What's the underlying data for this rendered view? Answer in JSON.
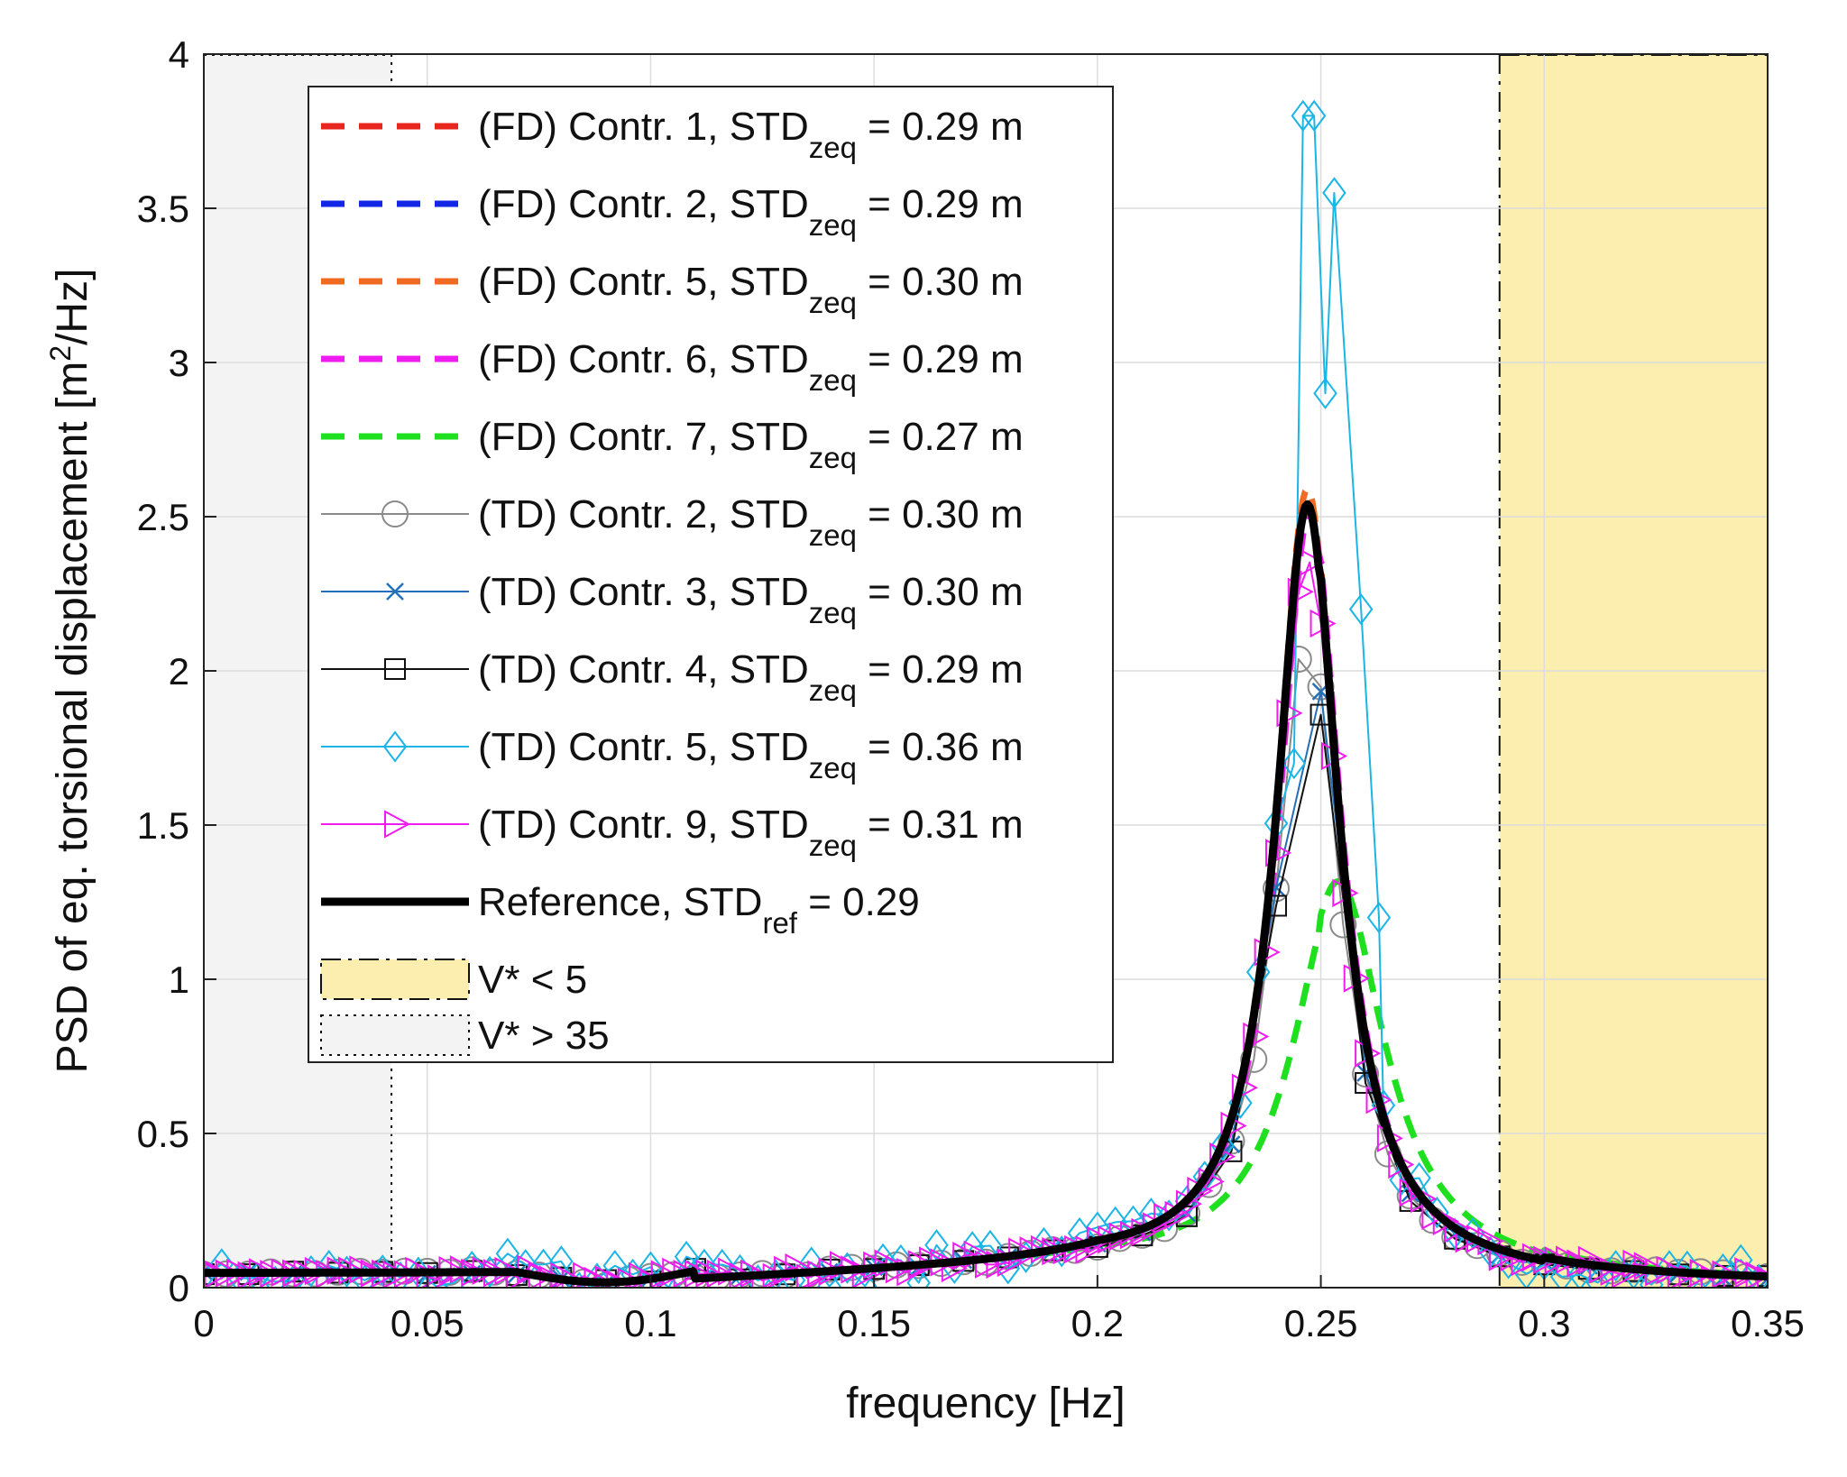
{
  "chart_data": {
    "type": "line",
    "title": "",
    "xlabel": "frequency [Hz]",
    "ylabel": "PSD of eq. torsional displacement [m²/Hz]",
    "ylabel_parts": {
      "pre": "PSD of eq. torsional displacement [m",
      "sup": "2",
      "post": "/Hz]"
    },
    "xlim": [
      0,
      0.35
    ],
    "ylim": [
      0,
      4
    ],
    "grid": true,
    "legend_position": "top-left",
    "x_ticks": [
      0,
      0.05,
      0.1,
      0.15,
      0.2,
      0.25,
      0.3,
      0.35
    ],
    "x_tick_labels": [
      "0",
      "0.05",
      "0.1",
      "0.15",
      "0.2",
      "0.25",
      "0.3",
      "0.35"
    ],
    "y_ticks": [
      0,
      0.5,
      1,
      1.5,
      2,
      2.5,
      3,
      3.5,
      4
    ],
    "y_tick_labels": [
      "0",
      "0.5",
      "1",
      "1.5",
      "2",
      "2.5",
      "3",
      "3.5",
      "4"
    ],
    "regions": [
      {
        "label": "V* < 5",
        "label_pre": "V* < 5",
        "x_start": 0.29,
        "x_end": 0.35,
        "fill": "#fbeeaf",
        "border": "dashdot"
      },
      {
        "label": "V* > 35",
        "label_pre": "V* > 35",
        "x_start": 0,
        "x_end": 0.042,
        "fill": "#f3f3f3",
        "border": "dotted"
      }
    ],
    "series": [
      {
        "name": "(FD) Contr. 1, STD_zeq = 0.29 m",
        "label_pre": "(FD) Contr. 1, STD",
        "label_sub": "zeq",
        "label_post": " = 0.29 m",
        "color": "#e8251e",
        "style": "dashed",
        "marker": "none",
        "scale": 1.0,
        "shift": 0.0,
        "noise": 0.0
      },
      {
        "name": "(FD) Contr. 2, STD_zeq = 0.29 m",
        "label_pre": "(FD) Contr. 2, STD",
        "label_sub": "zeq",
        "label_post": " = 0.29 m",
        "color": "#1226e6",
        "style": "dashed",
        "marker": "none",
        "scale": 1.0,
        "shift": 0.0,
        "noise": 0.0
      },
      {
        "name": "(FD) Contr. 5, STD_zeq = 0.30 m",
        "label_pre": "(FD) Contr. 5, STD",
        "label_sub": "zeq",
        "label_post": " = 0.30 m",
        "color": "#f06a22",
        "style": "dashed",
        "marker": "none",
        "scale": 1.02,
        "shift": 0.0,
        "noise": 0.0
      },
      {
        "name": "(FD) Contr. 6, STD_zeq = 0.29 m",
        "label_pre": "(FD) Contr. 6, STD",
        "label_sub": "zeq",
        "label_post": " = 0.29 m",
        "color": "#ee1cee",
        "style": "dashed",
        "marker": "none",
        "scale": 0.99,
        "shift": 0.0005,
        "noise": 0.0
      },
      {
        "name": "(FD) Contr. 7, STD_zeq = 0.27 m",
        "label_pre": "(FD) Contr. 7, STD",
        "label_sub": "zeq",
        "label_post": " = 0.27 m",
        "color": "#1fe01f",
        "style": "dashed",
        "marker": "none",
        "peak_override": {
          "f0": 0.254,
          "amp": 1.25,
          "gamma": 0.0125
        }
      },
      {
        "name": "(TD) Contr. 2, STD_zeq = 0.30 m",
        "label_pre": "(TD) Contr. 2, STD",
        "label_sub": "zeq",
        "label_post": " = 0.30 m",
        "color": "#8a8a8a",
        "style": "solid",
        "marker": "circle",
        "step": 0.005,
        "scale": 0.84,
        "shift": 0.0,
        "noise": 0.01
      },
      {
        "name": "(TD) Contr. 3, STD_zeq = 0.30 m",
        "label_pre": "(TD) Contr. 3, STD",
        "label_sub": "zeq",
        "label_post": " = 0.30 m",
        "color": "#2470b8",
        "style": "solid",
        "marker": "x",
        "step": 0.01,
        "scale": 0.84,
        "shift": 0.0,
        "noise": 0.01
      },
      {
        "name": "(TD) Contr. 4, STD_zeq = 0.29 m",
        "label_pre": "(TD) Contr. 4, STD",
        "label_sub": "zeq",
        "label_post": " = 0.29 m",
        "color": "#111111",
        "style": "solid",
        "marker": "square",
        "step": 0.01,
        "scale": 0.8,
        "shift": 0.0,
        "noise": 0.01
      },
      {
        "name": "(TD) Contr. 5, STD_zeq = 0.36 m",
        "label_pre": "(TD) Contr. 5, STD",
        "label_sub": "zeq",
        "label_post": "  = 0.36 m",
        "color": "#1bb5e6",
        "style": "solid",
        "marker": "diamond",
        "step": 0.004,
        "peak_points": [
          [
            0.244,
            1.7
          ],
          [
            0.246,
            3.8
          ],
          [
            0.2485,
            3.8
          ],
          [
            0.251,
            2.9
          ],
          [
            0.253,
            3.55
          ],
          [
            0.259,
            2.2
          ],
          [
            0.263,
            1.2
          ]
        ],
        "scale": 1.0,
        "shift": 0.0,
        "noise": 0.06
      },
      {
        "name": "(TD) Contr. 9, STD_zeq = 0.31 m",
        "label_pre": "(TD) Contr. 9, STD",
        "label_sub": "zeq",
        "label_post": "  = 0.31 m",
        "color": "#ee1cee",
        "style": "solid",
        "marker": "triangle-right",
        "step": 0.0025,
        "scale": 0.93,
        "shift": 0.0,
        "noise": 0.02
      },
      {
        "name": "Reference, STD_ref = 0.29",
        "label_pre": "Reference, STD",
        "label_sub": "ref",
        "label_post": " = 0.29",
        "color": "#000000",
        "style": "thick",
        "marker": "none",
        "scale": 1.0,
        "shift": 0.0,
        "noise": 0.0
      }
    ],
    "reference_curve": {
      "peak_frequency": 0.247,
      "peak_value": 2.5,
      "half_width": 0.0085
    },
    "values": [
      [
        0,
        0.04
      ],
      [
        0.05,
        0.05
      ],
      [
        0.1,
        0.01
      ],
      [
        0.15,
        0.09
      ],
      [
        0.2,
        0.2
      ],
      [
        0.22,
        0.42
      ],
      [
        0.24,
        1.6
      ],
      [
        0.247,
        2.5
      ],
      [
        0.255,
        1.6
      ],
      [
        0.27,
        0.35
      ],
      [
        0.29,
        0.12
      ],
      [
        0.3,
        0.08
      ],
      [
        0.35,
        0.02
      ]
    ]
  }
}
